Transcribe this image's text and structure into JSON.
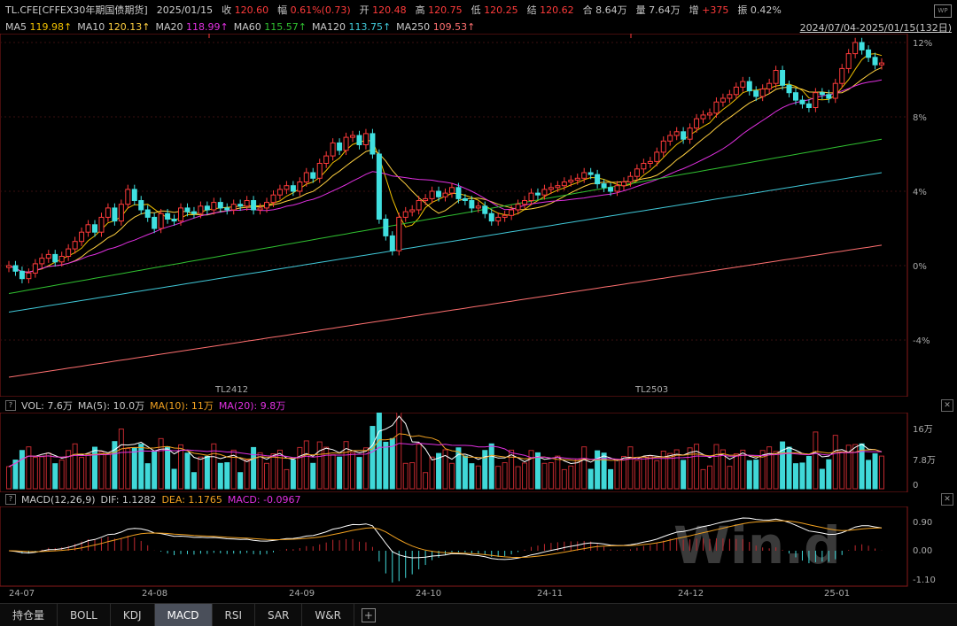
{
  "header": {
    "symbol": "TL.CFE[CFFEX30年期国债期货]",
    "date": "2025/01/15",
    "close_label": "收",
    "close": "120.60",
    "change_label": "幅",
    "change": "0.61%(0.73)",
    "open_label": "开",
    "open": "120.48",
    "high_label": "高",
    "high": "120.75",
    "low_label": "低",
    "low": "120.25",
    "settle_label": "结",
    "settle": "120.62",
    "oi_label": "合",
    "oi": "8.64万",
    "vol_label": "量",
    "vol": "7.64万",
    "inc_label": "增",
    "inc": "+375",
    "amp_label": "振",
    "amp": "0.42%",
    "wp_label": "WP"
  },
  "ma_bar": {
    "items": [
      {
        "name": "MA5",
        "value": "119.98↑",
        "color": "#f0c000"
      },
      {
        "name": "MA10",
        "value": "120.13↑",
        "color": "#ffd040"
      },
      {
        "name": "MA20",
        "value": "118.99↑",
        "color": "#e030e0"
      },
      {
        "name": "MA60",
        "value": "115.57↑",
        "color": "#30c030"
      },
      {
        "name": "MA120",
        "value": "113.75↑",
        "color": "#40c8d8"
      },
      {
        "name": "MA250",
        "value": "109.53↑",
        "color": "#ff7070"
      }
    ],
    "date_range": "2024/07/04-2025/01/15(132日)"
  },
  "main_panel": {
    "y_ticks": [
      "12%",
      "8%",
      "4%",
      "0%",
      "-4%"
    ],
    "contract_labels": [
      "TL2412",
      "TL2503"
    ]
  },
  "volume_panel": {
    "header": "VOL: 7.6万",
    "ma5": "MA(5): 10.0万",
    "ma10": "MA(10): 11万",
    "ma20": "MA(20): 9.8万",
    "y_ticks": [
      "16万",
      "7.8万",
      "0"
    ]
  },
  "macd_panel": {
    "header": "MACD(12,26,9)",
    "dif": "DIF: 1.1282",
    "dea": "DEA: 1.1765",
    "macd": "MACD: -0.0967",
    "y_ticks": [
      "0.90",
      "0.00",
      "-1.10"
    ],
    "watermark": "Win.d"
  },
  "x_axis": {
    "labels": [
      "24-07",
      "24-08",
      "24-09",
      "24-10",
      "24-11",
      "24-12",
      "25-01"
    ]
  },
  "tabs": {
    "items": [
      {
        "label": "持仓量",
        "active": false
      },
      {
        "label": "BOLL",
        "active": false
      },
      {
        "label": "KDJ",
        "active": false
      },
      {
        "label": "MACD",
        "active": true
      },
      {
        "label": "RSI",
        "active": false
      },
      {
        "label": "SAR",
        "active": false
      },
      {
        "label": "W&R",
        "active": false
      }
    ]
  },
  "chart_data": {
    "type": "candlestick",
    "pct_series": [
      0,
      -0.3,
      -0.7,
      -0.4,
      0.1,
      0.4,
      0.6,
      0.2,
      0.5,
      0.9,
      1.3,
      1.8,
      2.2,
      1.8,
      2.6,
      3.1,
      2.4,
      3.3,
      4.1,
      3.5,
      3.0,
      2.6,
      2.0,
      2.8,
      2.5,
      2.4,
      3.1,
      2.9,
      2.8,
      3.2,
      3.0,
      3.4,
      3.1,
      3.0,
      3.3,
      3.2,
      3.5,
      3.0,
      3.1,
      3.4,
      3.8,
      4.1,
      4.3,
      4.0,
      4.5,
      5.0,
      4.7,
      5.5,
      5.9,
      6.6,
      6.2,
      6.9,
      7.0,
      6.5,
      7.1,
      6.0,
      2.5,
      1.6,
      0.8,
      2.6,
      2.9,
      3.0,
      3.5,
      3.6,
      4.0,
      3.7,
      3.9,
      4.2,
      3.6,
      3.5,
      3.1,
      3.2,
      2.8,
      2.4,
      2.6,
      2.7,
      3.0,
      3.3,
      3.5,
      3.9,
      3.8,
      4.1,
      4.2,
      4.3,
      4.5,
      4.6,
      4.7,
      5.0,
      4.9,
      4.4,
      4.2,
      4.0,
      4.3,
      4.5,
      4.8,
      5.2,
      5.5,
      5.6,
      6.1,
      6.7,
      7.0,
      7.2,
      6.8,
      7.4,
      7.9,
      8.1,
      8.2,
      8.8,
      9.0,
      9.2,
      9.6,
      9.9,
      9.4,
      9.1,
      9.5,
      9.8,
      10.5,
      9.7,
      9.3,
      8.9,
      8.7,
      8.5,
      9.3,
      9.2,
      9.0,
      9.8,
      10.6,
      11.4,
      12.0,
      11.6,
      11.2,
      10.8,
      10.9
    ]
  }
}
